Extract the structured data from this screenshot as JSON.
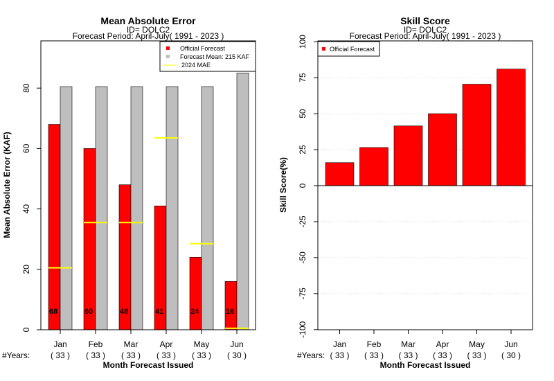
{
  "colors": {
    "official": "#ff0000",
    "mean": "#bebebe",
    "mae_line": "#ffff00",
    "grid": "#d3d3d3"
  },
  "chart_data": [
    {
      "type": "bar",
      "title": "Mean Absolute Error",
      "subtitle1": "ID= DOLC2",
      "subtitle2": "Forecast Period: April-July( 1991 - 2023 )",
      "xlabel": "Month Forecast Issued",
      "ylabel": "Mean Absolute Error (KAF)",
      "ylim": [
        0,
        95
      ],
      "yticks": [
        0,
        20,
        40,
        60,
        80
      ],
      "categories": [
        "Jan",
        "Feb",
        "Mar",
        "Apr",
        "May",
        "Jun"
      ],
      "years_label": "#Years:",
      "years": [
        "( 33 )",
        "( 33 )",
        "( 33 )",
        "( 33 )",
        "( 33 )",
        "( 30 )"
      ],
      "series": [
        {
          "name": "Official Forecast",
          "values": [
            68,
            60,
            48,
            41,
            24,
            16
          ]
        },
        {
          "name": "Forecast Mean: 215 KAF",
          "values": [
            80.5,
            80.5,
            80.5,
            80.5,
            80.5,
            85
          ]
        }
      ],
      "mae_2024": {
        "name": "2024  MAE",
        "values": [
          20.5,
          35.5,
          35.5,
          63.5,
          28.5,
          0.5
        ]
      },
      "data_labels": [
        "68",
        "60",
        "48",
        "41",
        "24",
        "16"
      ],
      "legend": "top-right"
    },
    {
      "type": "bar",
      "title": "Skill Score",
      "subtitle1": "ID= DOLC2",
      "subtitle2": "Forecast Period: April-July( 1991 - 2023 )",
      "xlabel": "Month Forecast Issued",
      "ylabel": "Skill Score(%)",
      "ylim": [
        -100,
        100
      ],
      "yticks": [
        -100,
        -75,
        -50,
        -25,
        0,
        25,
        50,
        75,
        100
      ],
      "categories": [
        "Jan",
        "Feb",
        "Mar",
        "Apr",
        "May",
        "Jun"
      ],
      "years_label": "#Years:",
      "years": [
        "( 33 )",
        "( 33 )",
        "( 33 )",
        "( 33 )",
        "( 33 )",
        "( 30 )"
      ],
      "series": [
        {
          "name": "Official Forecast",
          "values": [
            16,
            26.5,
            41.5,
            50,
            70.5,
            81
          ]
        }
      ],
      "grid": true,
      "legend": "top-left"
    }
  ]
}
